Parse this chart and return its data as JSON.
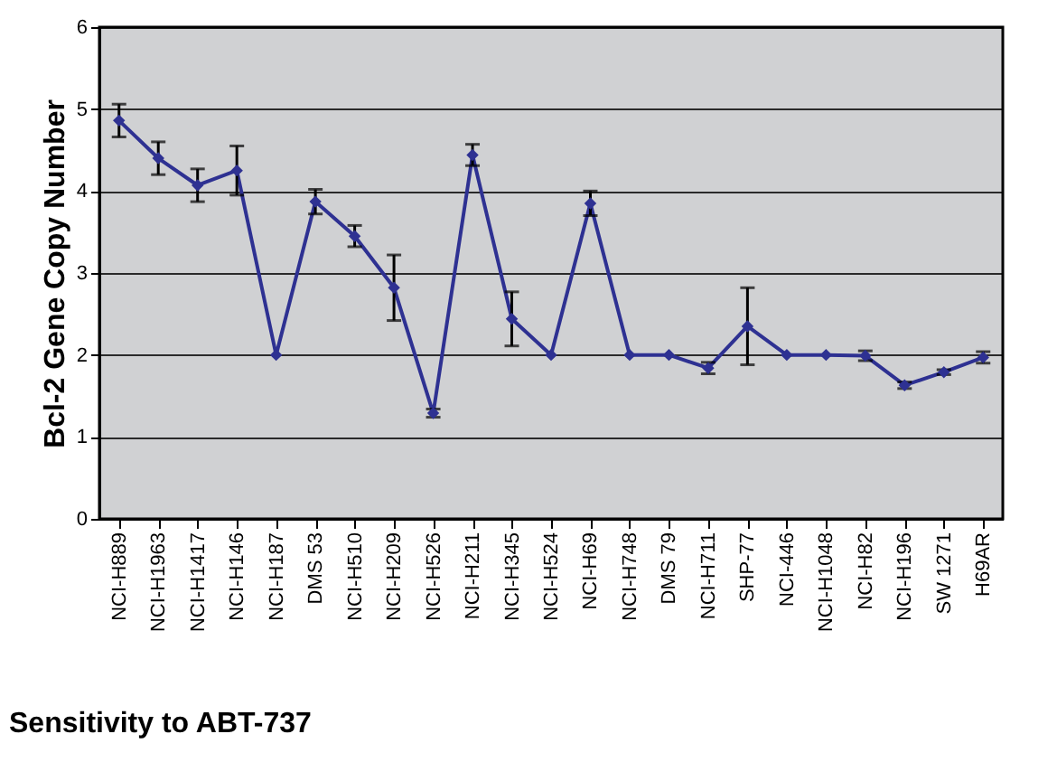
{
  "chart_data": {
    "type": "line",
    "ylabel": "Bcl-2 Gene Copy Number",
    "categories": [
      "NCI-H889",
      "NCI-H1963",
      "NCI-H1417",
      "NCI-H146",
      "NCI-H187",
      "DMS 53",
      "NCI-H510",
      "NCI-H209",
      "NCI-H526",
      "NCI-H211",
      "NCI-H345",
      "NCI-H524",
      "NCI-H69",
      "NCI-H748",
      "DMS 79",
      "NCI-H711",
      "SHP-77",
      "NCI-446",
      "NCI-H1048",
      "NCI-H82",
      "NCI-H196",
      "SW 1271",
      "H69AR"
    ],
    "series": [
      {
        "color": "#2e3192",
        "values": [
          4.86,
          4.4,
          4.07,
          4.25,
          2.0,
          3.87,
          3.45,
          2.82,
          1.29,
          4.44,
          2.44,
          2.0,
          3.85,
          2.0,
          2.0,
          1.84,
          2.35,
          2.0,
          2.0,
          1.99,
          1.63,
          1.79,
          1.97
        ],
        "errors": [
          0.2,
          0.2,
          0.2,
          0.3,
          null,
          0.15,
          0.13,
          0.4,
          0.05,
          0.13,
          0.33,
          null,
          0.15,
          null,
          null,
          0.07,
          0.47,
          null,
          null,
          0.06,
          0.04,
          0.03,
          0.07
        ]
      }
    ],
    "ylim": [
      0,
      6
    ],
    "yticks": [
      0,
      1,
      2,
      3,
      4,
      5,
      6
    ],
    "grid": "y",
    "marker": "diamond",
    "line_style": "solid",
    "annotations": [
      "Sensitivity to ABT-737"
    ]
  }
}
